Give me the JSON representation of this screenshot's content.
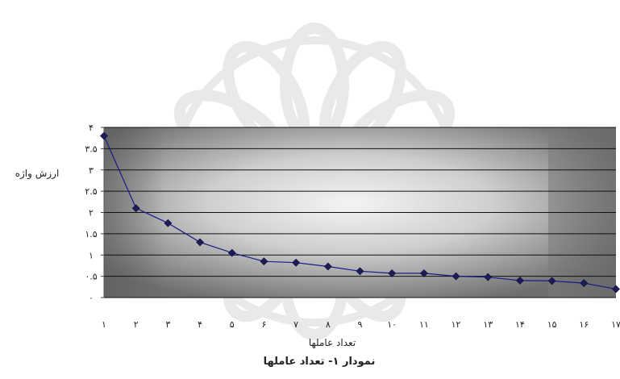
{
  "chart_data": {
    "type": "line",
    "title": "",
    "caption": "نمودار ۱- تعداد عاملها",
    "xlabel": "تعداد عاملها",
    "ylabel": "ارزش واژه",
    "x": [
      "۱",
      "۲",
      "۳",
      "۴",
      "۵",
      "۶",
      "۷",
      "۸",
      "۹",
      "۱۰",
      "۱۱",
      "۱۲",
      "۱۳",
      "۱۴",
      "۱۵",
      "۱۶",
      "۱۷"
    ],
    "series": [
      {
        "values": [
          3.8,
          2.1,
          1.75,
          1.3,
          1.05,
          0.85,
          0.82,
          0.73,
          0.62,
          0.57,
          0.57,
          0.5,
          0.48,
          0.4,
          0.39,
          0.34,
          0.2
        ]
      }
    ],
    "ylim": [
      0,
      4
    ],
    "yticks": [
      0,
      0.5,
      1,
      1.5,
      2,
      2.5,
      3,
      3.5,
      4
    ],
    "ytick_labels": [
      "۰",
      "۰.۵",
      "۱",
      "۱.۵",
      "۲",
      "۲.۵",
      "۳",
      "۳.۵",
      "۴"
    ],
    "grid": true,
    "legend": "none",
    "colors": {
      "line": "#1a1a8c",
      "marker": "#1c1c5a",
      "grid": "#111111",
      "plot_dark": "#6e6e6e",
      "plot_light": "#f4f4f4"
    }
  }
}
